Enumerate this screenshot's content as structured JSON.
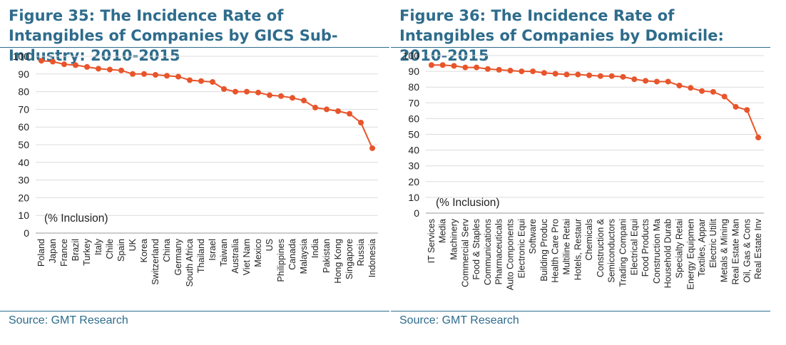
{
  "figures": [
    {
      "title": "Figure 35: The Incidence Rate of Intangibles of Companies by GICS Sub-Industry: 2010-2015",
      "source": "Source: GMT Research",
      "chart_data": {
        "type": "line",
        "annotation": "(% Inclusion)",
        "ylim": [
          0,
          100
        ],
        "yticks": [
          0,
          10,
          20,
          30,
          40,
          50,
          60,
          70,
          80,
          90,
          100
        ],
        "grid": true,
        "color": "#e8552b",
        "categories": [
          "Poland",
          "Japan",
          "France",
          "Brazil",
          "Turkey",
          "Italy",
          "Chile",
          "Spain",
          "UK",
          "Korea",
          "Switzerland",
          "China",
          "Germany",
          "South Africa",
          "Thailand",
          "Israel",
          "Taiwan",
          "Australia",
          "Viet Nam",
          "Mexico",
          "US",
          "Philippines",
          "Canada",
          "Malaysia",
          "India",
          "Pakistan",
          "Hong Kong",
          "Singapore",
          "Russia",
          "Indonesia"
        ],
        "values": [
          97.5,
          97,
          95.5,
          95,
          94,
          93,
          92.5,
          92,
          90,
          90,
          89.5,
          89,
          88.5,
          86.5,
          86,
          85.5,
          81.5,
          80,
          80,
          79.5,
          78,
          77.5,
          76.5,
          75,
          71,
          70,
          69,
          67.5,
          62.5,
          48
        ]
      }
    },
    {
      "title": "Figure 36: The Incidence Rate of Intangibles of Companies by Domicile: 2010-2015",
      "source": "Source: GMT Research",
      "chart_data": {
        "type": "line",
        "annotation": "(% Inclusion)",
        "ylim": [
          0,
          100
        ],
        "yticks": [
          0,
          10,
          20,
          30,
          40,
          50,
          60,
          70,
          80,
          90,
          100
        ],
        "grid": true,
        "color": "#e8552b",
        "categories": [
          "IT Services",
          "Media",
          "Machinery",
          "Commercial Serv",
          "Food & Staples",
          "Communications",
          "Pharmaceuticals",
          "Auto Components",
          "Electronic Equi",
          "Software",
          "Building Produc",
          "Health Care Pro",
          "Multiline Retai",
          "Hotels, Restaur",
          "Chemicals",
          "Construction &",
          "Semiconductors",
          "Trading Compani",
          "Electrical Equi",
          "Food Products",
          "Construction Ma",
          "Household Durab",
          "Specialty Retai",
          "Energy Equipmen",
          "Textiles, Appar",
          "Electric Utilit",
          "Metals & Mining",
          "Real Estate Man",
          "Oil, Gas & Cons",
          "Real Estate Inv"
        ],
        "values": [
          94,
          94,
          93.5,
          92.5,
          92.5,
          91.5,
          91,
          90.5,
          90,
          90,
          89,
          88.5,
          88,
          88,
          87.5,
          87,
          87,
          86.5,
          85,
          84,
          83.5,
          83.5,
          81,
          79.5,
          77.5,
          77,
          74,
          67.5,
          65.5,
          48
        ]
      }
    }
  ]
}
